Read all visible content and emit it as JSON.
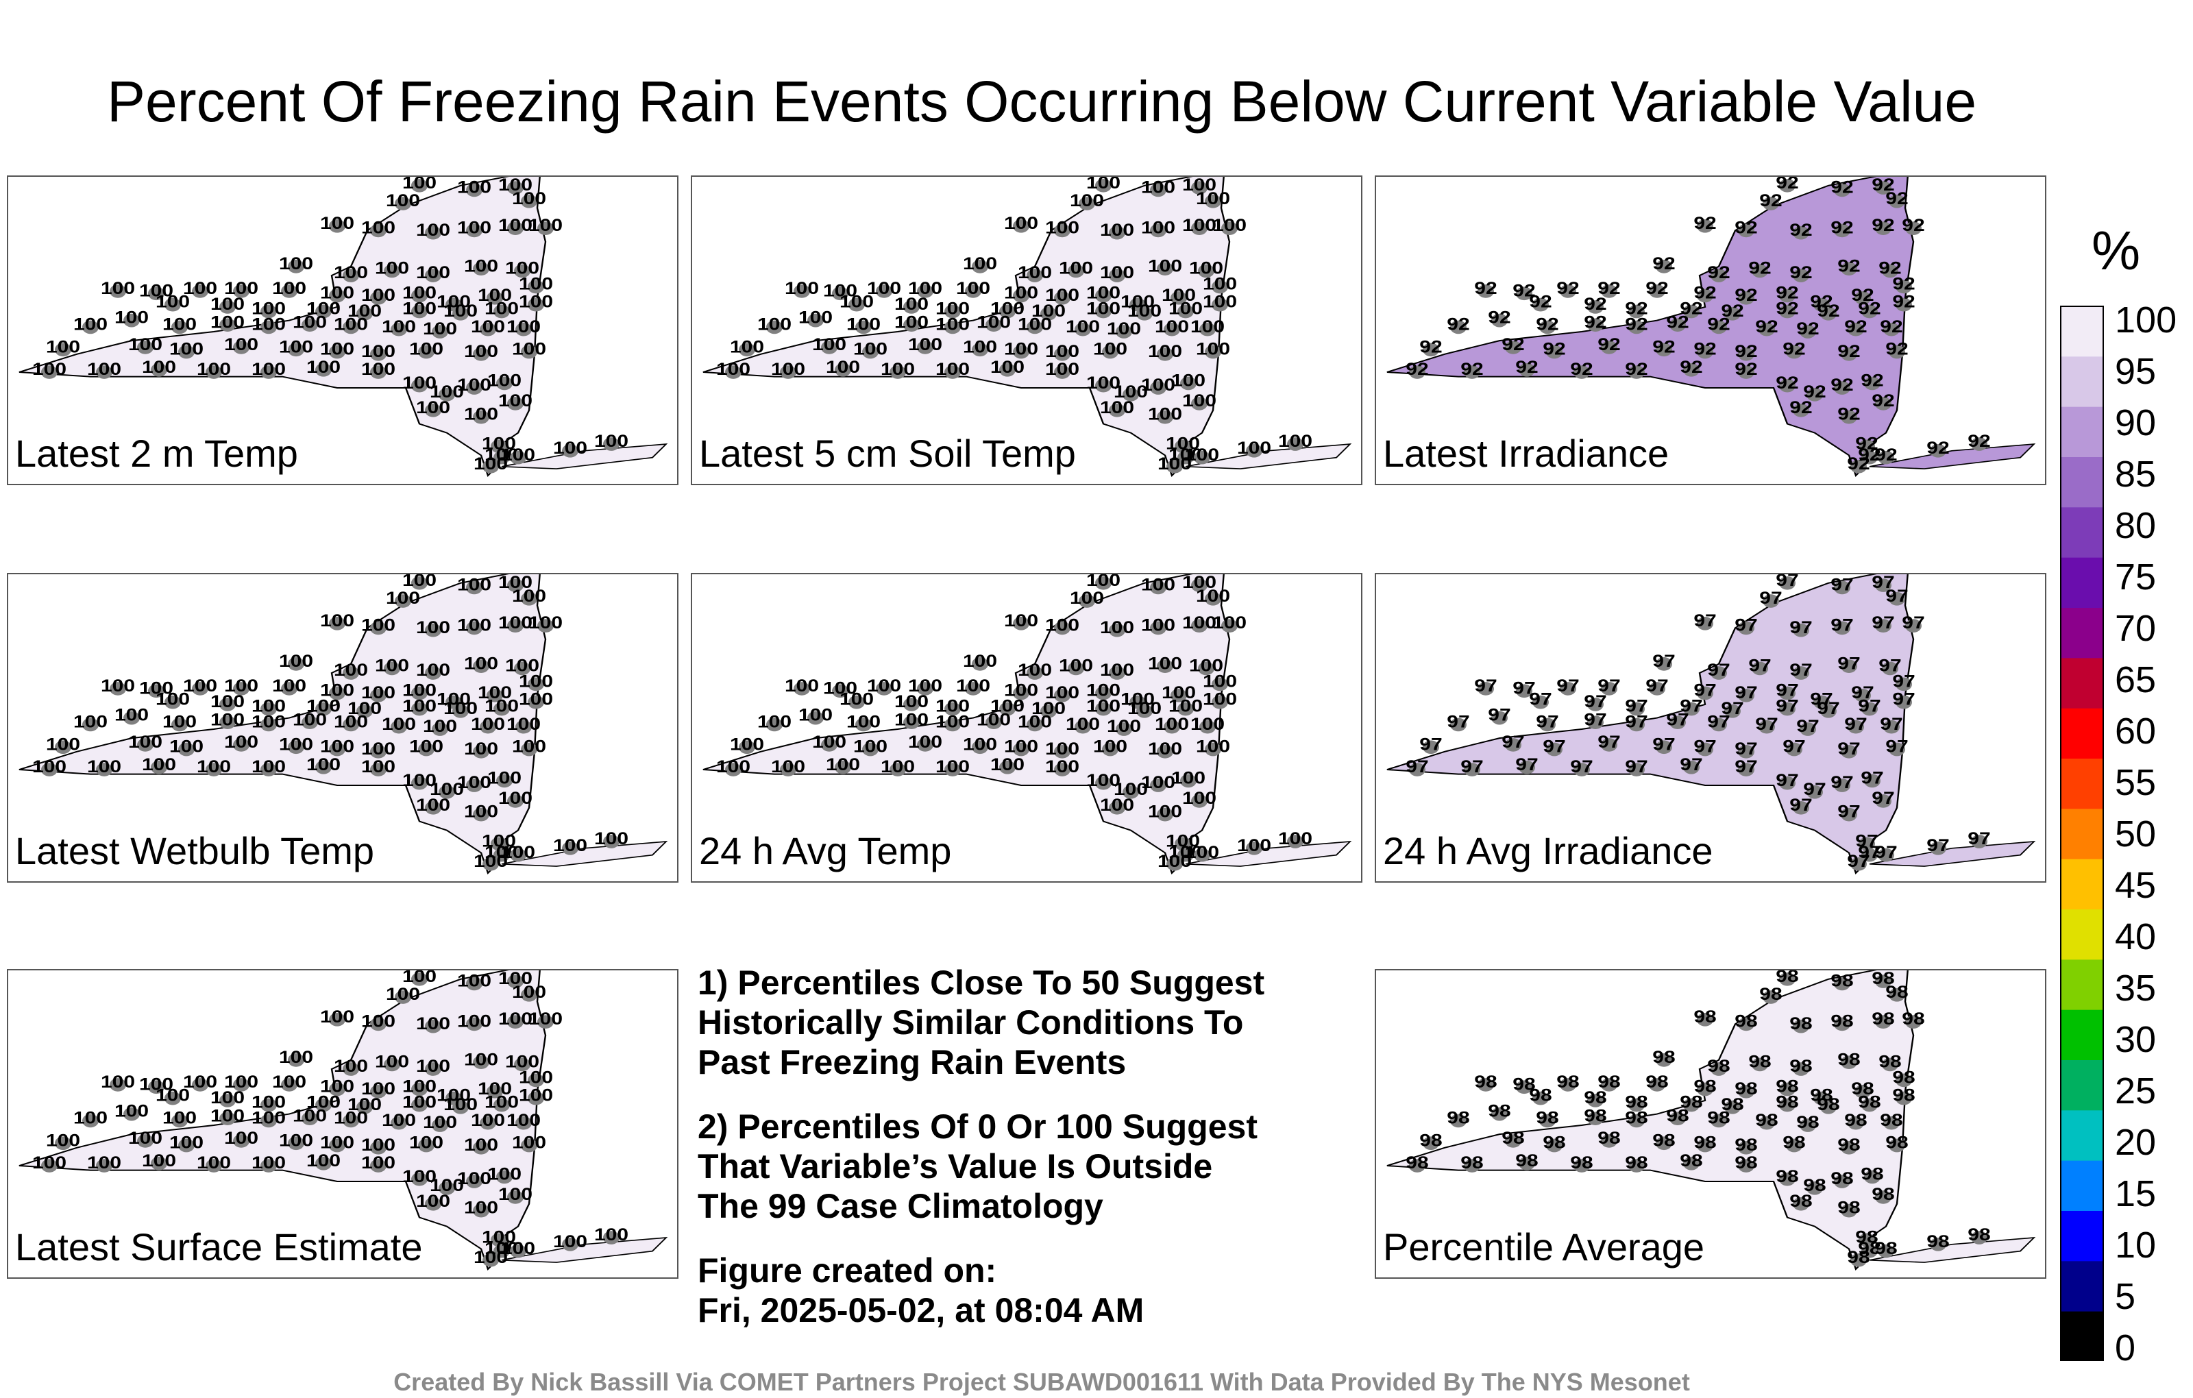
{
  "title": "Percent Of Freezing Rain Events Occurring Below Current Variable Value",
  "panels": [
    {
      "label": "Latest 2 m Temp",
      "base_value": 100
    },
    {
      "label": "Latest 5 cm Soil Temp",
      "base_value": 100
    },
    {
      "label": "Latest Irradiance",
      "base_value": 92
    },
    {
      "label": "Latest Wetbulb Temp",
      "base_value": 100
    },
    {
      "label": "24 h Avg Temp",
      "base_value": 100
    },
    {
      "label": "24 h Avg Irradiance",
      "base_value": 97
    },
    {
      "label": "Latest Surface Estimate",
      "base_value": 100
    },
    {
      "label": "Percentile Average",
      "base_value": 98
    }
  ],
  "notes": {
    "note1": "1) Percentiles Close To 50 Suggest\nHistorically Similar Conditions To\nPast Freezing Rain Events",
    "note2": "2) Percentiles Of 0 Or 100 Suggest\nThat Variable’s Value Is Outside\nThe 99 Case Climatology",
    "figure_created": "Figure created on:\nFri, 2025-05-02, at 08:04 AM"
  },
  "colorbar": {
    "unit": "%",
    "ticks": [
      "100",
      "95",
      "90",
      "85",
      "80",
      "75",
      "70",
      "65",
      "60",
      "55",
      "50",
      "45",
      "40",
      "35",
      "30",
      "25",
      "20",
      "15",
      "10",
      "5",
      "0"
    ],
    "colors": [
      "#000000",
      "#00008b",
      "#0000ff",
      "#0080ff",
      "#00c0c0",
      "#00b060",
      "#00c000",
      "#80d000",
      "#e0e000",
      "#ffc000",
      "#ff8000",
      "#ff4000",
      "#ff0000",
      "#c00030",
      "#8b008b",
      "#6a0dad",
      "#7d3cb8",
      "#9a6cc8",
      "#b898d8",
      "#d8c8e8",
      "#f2ecf6"
    ]
  },
  "credit": "Created By Nick Bassill Via COMET Partners Project SUBAWD001611 With Data Provided By The NYS Mesonet"
}
